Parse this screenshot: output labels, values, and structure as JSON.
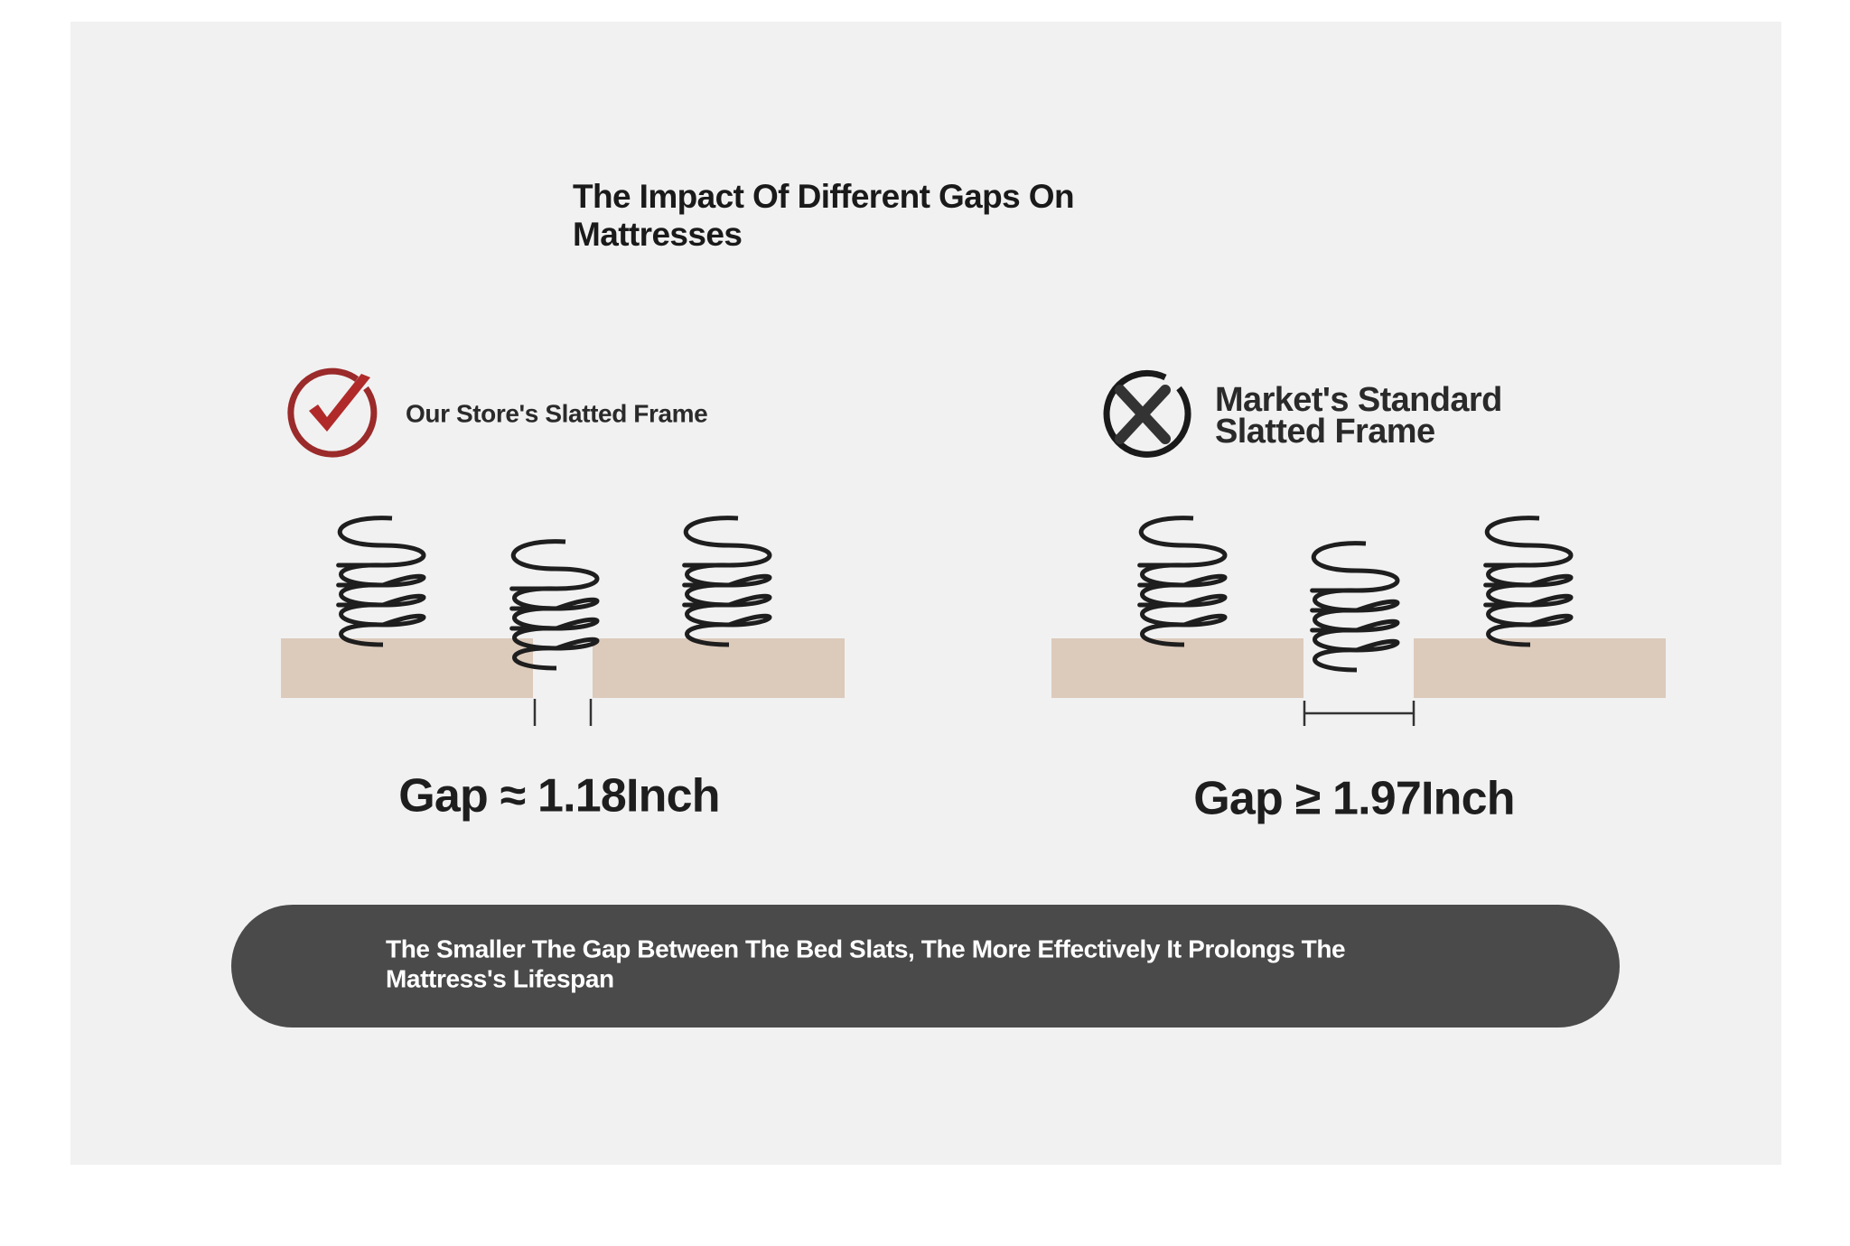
{
  "title": [
    "The Impact Of Different Gaps On",
    "Mattresses"
  ],
  "panels": [
    {
      "label": [
        "Our Store's Slatted Frame"
      ],
      "gap": "Gap ≈ 1.18Inch"
    },
    {
      "label": [
        "Market's Standard",
        "Slatted Frame"
      ],
      "gap": "Gap ≥ 1.97Inch"
    }
  ],
  "footer": [
    "The Smaller The Gap Between The Bed Slats, The More Effectively It Prolongs The",
    "Mattress's Lifespan"
  ]
}
